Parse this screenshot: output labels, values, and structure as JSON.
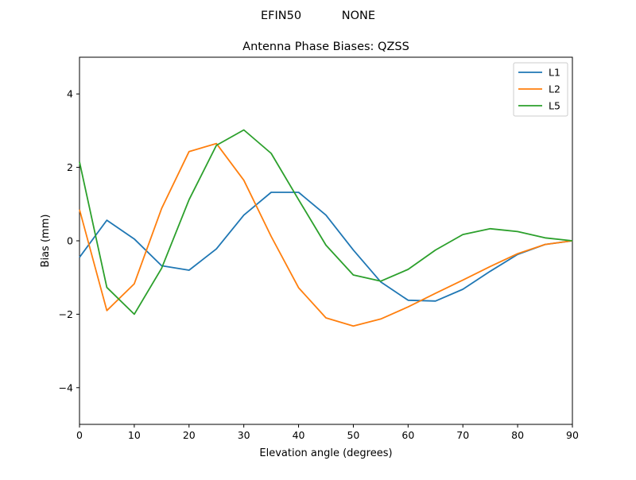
{
  "suptitle": "EFIN50           NONE",
  "chart_data": {
    "type": "line",
    "title": "Antenna Phase Biases: QZSS",
    "xlabel": "Elevation angle (degrees)",
    "ylabel": "Bias (mm)",
    "xlim": [
      0,
      90
    ],
    "ylim": [
      -5,
      5
    ],
    "xticks": [
      0,
      10,
      20,
      30,
      40,
      50,
      60,
      70,
      80,
      90
    ],
    "yticks": [
      -4,
      -2,
      0,
      2,
      4
    ],
    "grid": false,
    "legend_position": "top-right",
    "x": [
      0,
      5,
      10,
      15,
      20,
      25,
      30,
      35,
      40,
      45,
      50,
      55,
      60,
      65,
      70,
      75,
      80,
      85,
      90
    ],
    "series": [
      {
        "name": "L1",
        "color": "#1f77b4",
        "values": [
          -0.45,
          0.56,
          0.05,
          -0.68,
          -0.8,
          -0.22,
          0.7,
          1.32,
          1.32,
          0.7,
          -0.25,
          -1.12,
          -1.62,
          -1.64,
          -1.32,
          -0.83,
          -0.37,
          -0.1,
          0.0
        ]
      },
      {
        "name": "L2",
        "color": "#ff7f0e",
        "values": [
          0.85,
          -1.9,
          -1.17,
          0.88,
          2.43,
          2.65,
          1.65,
          0.12,
          -1.28,
          -2.1,
          -2.32,
          -2.13,
          -1.8,
          -1.43,
          -1.07,
          -0.7,
          -0.35,
          -0.1,
          0.0
        ]
      },
      {
        "name": "L5",
        "color": "#2ca02c",
        "values": [
          2.15,
          -1.27,
          -2.0,
          -0.75,
          1.12,
          2.6,
          3.02,
          2.38,
          1.12,
          -0.12,
          -0.93,
          -1.1,
          -0.78,
          -0.25,
          0.17,
          0.33,
          0.25,
          0.08,
          0.0
        ]
      }
    ]
  }
}
